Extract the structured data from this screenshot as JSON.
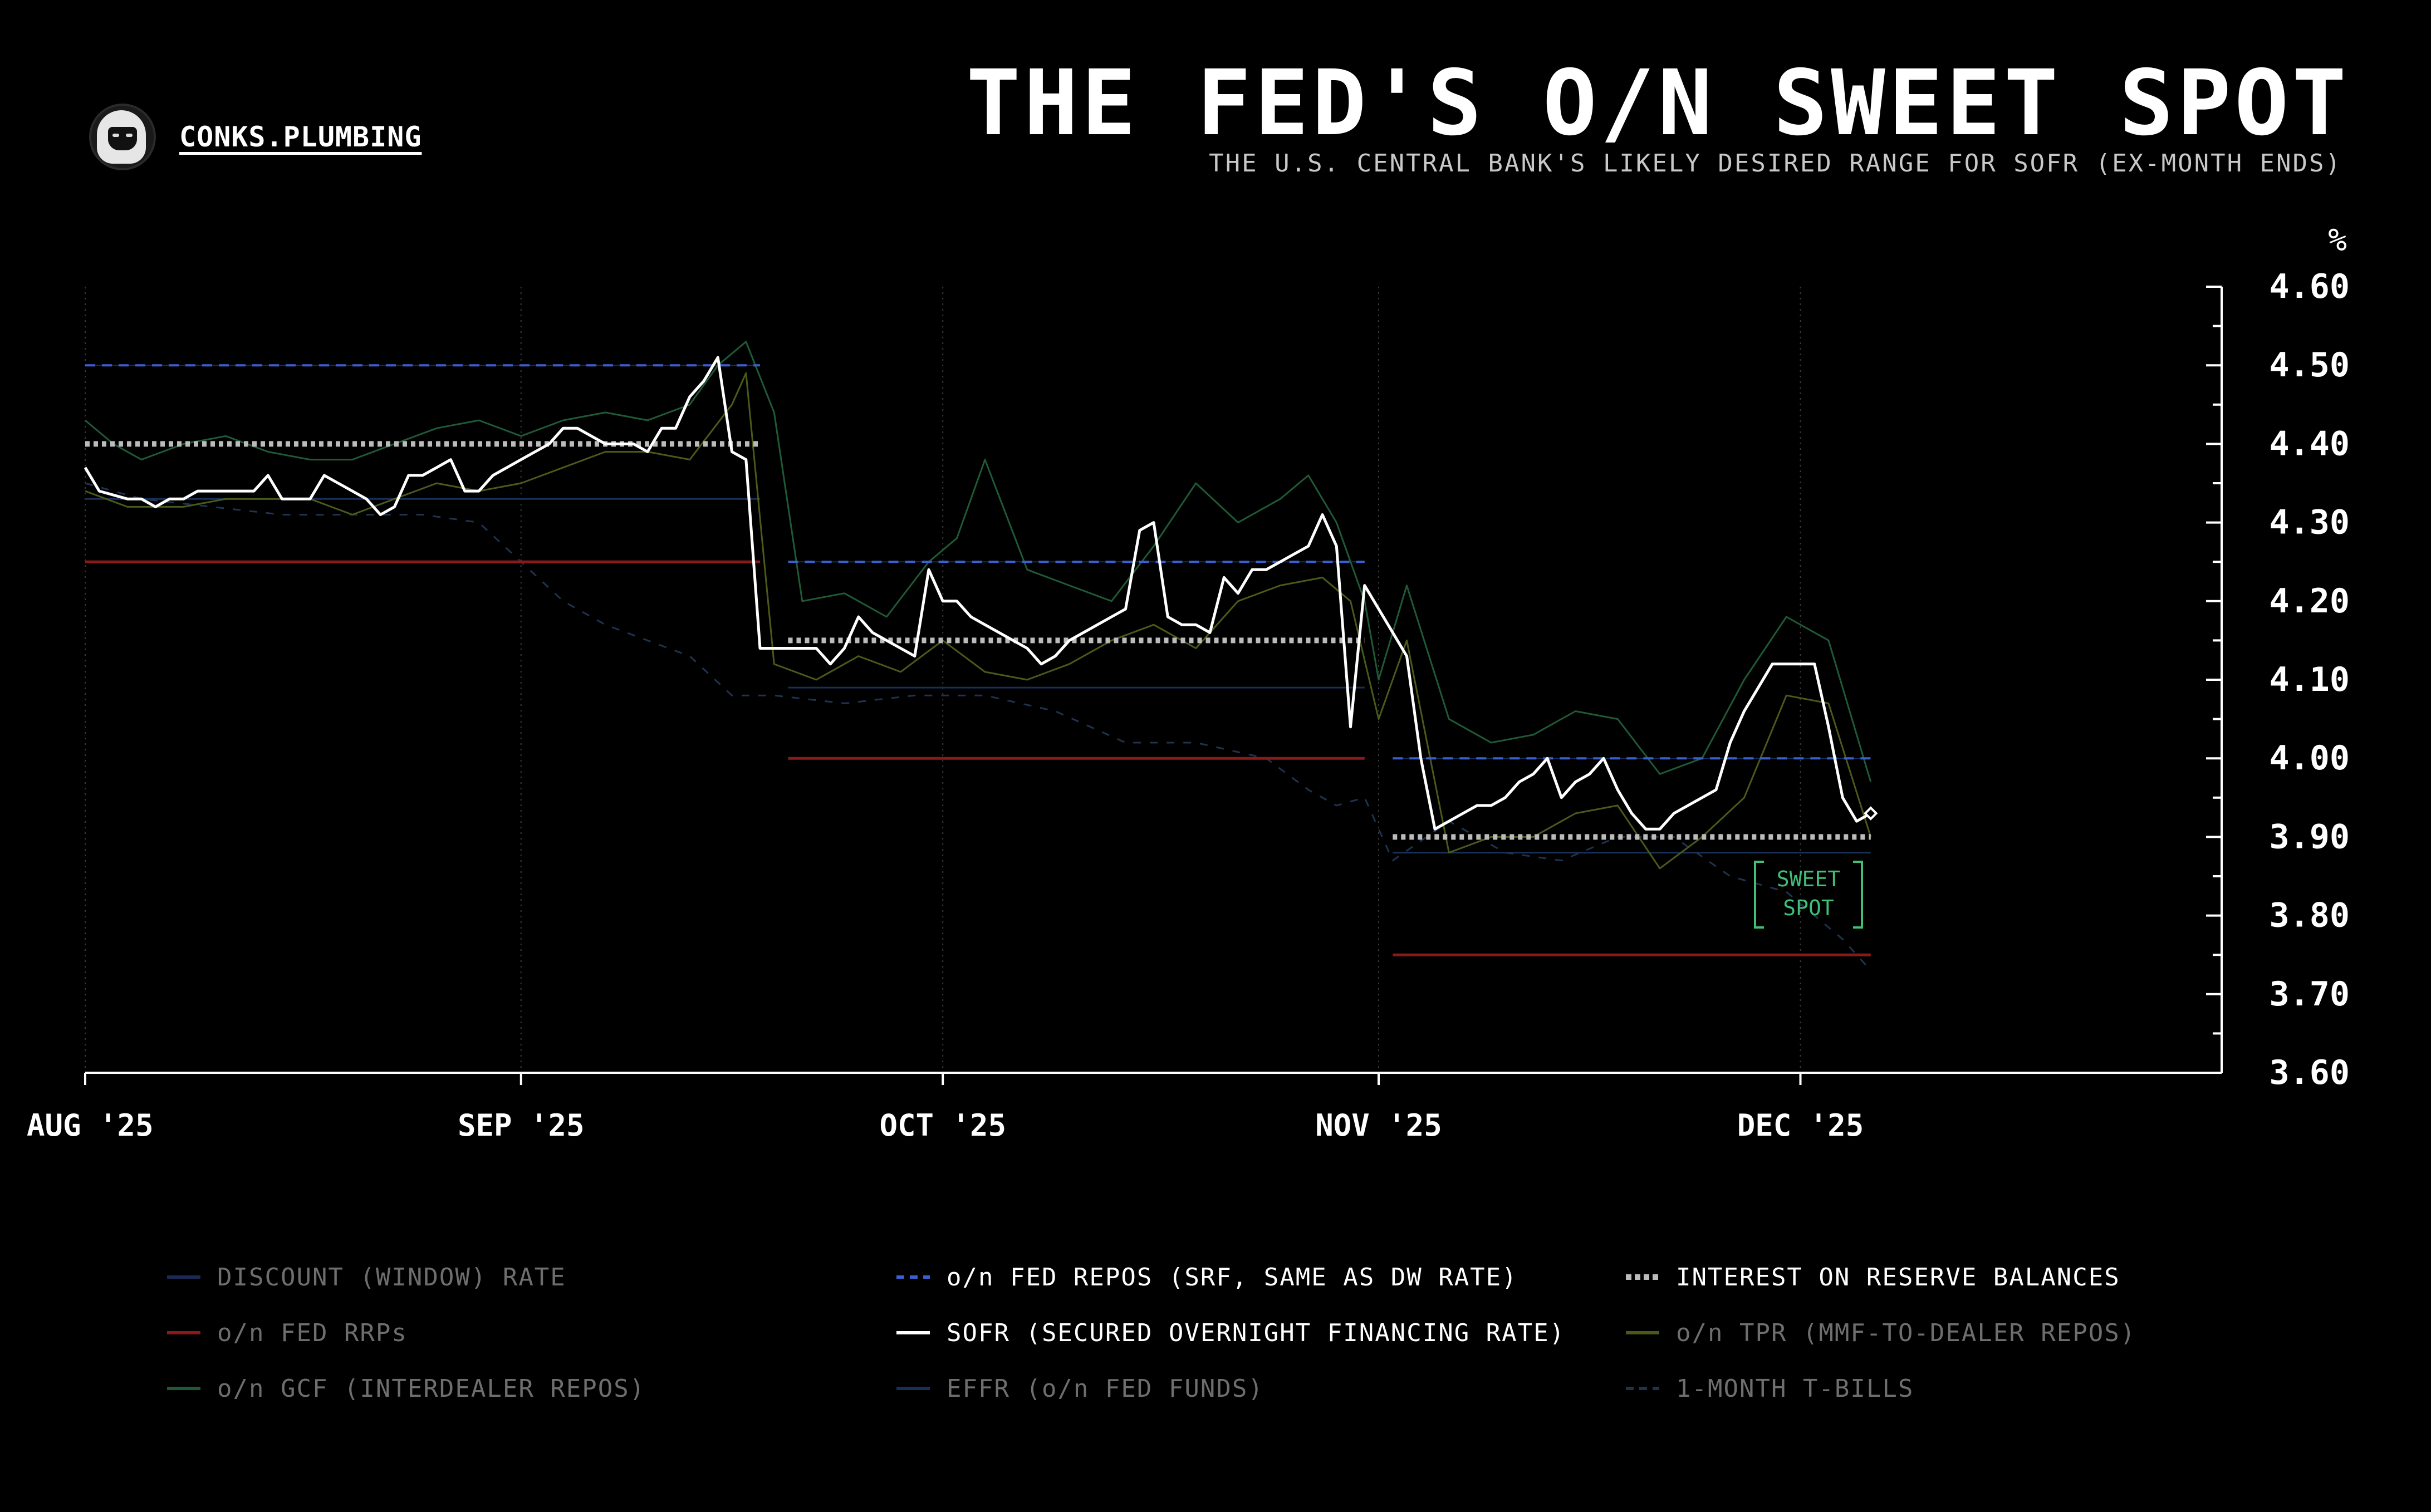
{
  "brand": {
    "name": "CONKS.PLUMBING"
  },
  "header": {
    "title": "THE FED'S O/N SWEET SPOT",
    "subtitle": "THE U.S. CENTRAL BANK'S LIKELY DESIRED RANGE FOR SOFR (EX-MONTH ENDS)"
  },
  "colors": {
    "background": "#000000",
    "sofr": "#ffffff",
    "srf": "#3a5fd0",
    "iorb": "#bbbbbb",
    "rrp": "#8a1a1a",
    "discount": "#1b2a55",
    "gcf": "#1f5a36",
    "tpr": "#4a5a1a",
    "effr": "#183058",
    "tbills": "#1f3350",
    "annotation": "#3fbf78"
  },
  "annotation": {
    "line1": "SWEET",
    "line2": "SPOT"
  },
  "chart_data": {
    "type": "line",
    "title": "THE FED'S O/N SWEET SPOT",
    "xlabel": "",
    "ylabel": "%",
    "ylim": [
      3.6,
      4.6
    ],
    "yticks": [
      "4.60",
      "4.50",
      "4.40",
      "4.30",
      "4.20",
      "4.10",
      "4.00",
      "3.90",
      "3.80",
      "3.70",
      "3.60"
    ],
    "xticks": [
      {
        "label": "AUG '25",
        "day": 1
      },
      {
        "label": "SEP '25",
        "day": 32
      },
      {
        "label": "OCT '25",
        "day": 62
      },
      {
        "label": "NOV '25",
        "day": 93
      },
      {
        "label": "DEC '25",
        "day": 123
      }
    ],
    "x_unit": "day of year offset from Aug 1 2025",
    "x_range": [
      1,
      153
    ],
    "grid": "vertical dotted at month starts",
    "legend_position": "bottom",
    "series": [
      {
        "key": "discount",
        "name": "DISCOUNT (WINDOW) RATE",
        "style": "solid",
        "width": 2,
        "color_key": "discount",
        "segments": [
          {
            "x": [
              1,
              49
            ],
            "y": [
              4.5,
              4.5
            ]
          },
          {
            "x": [
              51,
              92
            ],
            "y": [
              4.25,
              4.25
            ]
          },
          {
            "x": [
              94,
              128
            ],
            "y": [
              4.0,
              4.0
            ]
          }
        ]
      },
      {
        "key": "srf",
        "name": "o/n FED REPOS (SRF, SAME AS DW RATE)",
        "style": "dashed",
        "width": 4,
        "color_key": "srf",
        "segments": [
          {
            "x": [
              1,
              49
            ],
            "y": [
              4.5,
              4.5
            ]
          },
          {
            "x": [
              51,
              92
            ],
            "y": [
              4.25,
              4.25
            ]
          },
          {
            "x": [
              94,
              128
            ],
            "y": [
              4.0,
              4.0
            ]
          }
        ]
      },
      {
        "key": "iorb",
        "name": "INTEREST ON RESERVE BALANCES",
        "style": "dotted",
        "width": 10,
        "color_key": "iorb",
        "segments": [
          {
            "x": [
              1,
              49
            ],
            "y": [
              4.4,
              4.4
            ]
          },
          {
            "x": [
              51,
              92
            ],
            "y": [
              4.15,
              4.15
            ]
          },
          {
            "x": [
              94,
              128
            ],
            "y": [
              3.9,
              3.9
            ]
          }
        ]
      },
      {
        "key": "rrp",
        "name": "o/n FED RRPs",
        "style": "solid",
        "width": 5,
        "color_key": "rrp",
        "segments": [
          {
            "x": [
              1,
              49
            ],
            "y": [
              4.25,
              4.25
            ]
          },
          {
            "x": [
              51,
              92
            ],
            "y": [
              4.0,
              4.0
            ]
          },
          {
            "x": [
              94,
              128
            ],
            "y": [
              3.75,
              3.75
            ]
          }
        ]
      },
      {
        "key": "gcf",
        "name": "o/n GCF (INTERDEALER REPOS)",
        "style": "solid",
        "width": 3,
        "color_key": "gcf",
        "x": [
          1,
          3,
          5,
          8,
          11,
          14,
          17,
          20,
          23,
          26,
          29,
          32,
          35,
          38,
          41,
          44,
          46,
          48,
          50,
          52,
          55,
          58,
          61,
          63,
          65,
          68,
          71,
          74,
          77,
          80,
          83,
          86,
          88,
          90,
          92,
          93,
          95,
          98,
          101,
          104,
          107,
          110,
          113,
          116,
          119,
          122,
          125,
          128
        ],
        "y": [
          4.43,
          4.4,
          4.38,
          4.4,
          4.41,
          4.39,
          4.38,
          4.38,
          4.4,
          4.42,
          4.43,
          4.41,
          4.43,
          4.44,
          4.43,
          4.45,
          4.5,
          4.53,
          4.44,
          4.2,
          4.21,
          4.18,
          4.25,
          4.28,
          4.38,
          4.24,
          4.22,
          4.2,
          4.27,
          4.35,
          4.3,
          4.33,
          4.36,
          4.3,
          4.2,
          4.1,
          4.22,
          4.05,
          4.02,
          4.03,
          4.06,
          4.05,
          3.98,
          4.0,
          4.1,
          4.18,
          4.15,
          3.97
        ]
      },
      {
        "key": "sofr",
        "name": "SOFR (SECURED OVERNIGHT FINANCING RATE)",
        "style": "solid",
        "width": 5,
        "color_key": "sofr",
        "x": [
          1,
          2,
          4,
          5,
          6,
          7,
          8,
          9,
          10,
          11,
          12,
          13,
          14,
          15,
          16,
          17,
          18,
          19,
          20,
          21,
          22,
          23,
          24,
          25,
          26,
          27,
          28,
          29,
          30,
          31,
          32,
          33,
          34,
          35,
          36,
          37,
          38,
          39,
          40,
          41,
          42,
          43,
          44,
          45,
          46,
          47,
          48,
          49,
          50,
          51,
          52,
          53,
          54,
          55,
          56,
          57,
          58,
          59,
          60,
          61,
          62,
          63,
          64,
          65,
          66,
          67,
          68,
          69,
          70,
          71,
          72,
          73,
          74,
          75,
          76,
          77,
          78,
          79,
          80,
          81,
          82,
          83,
          84,
          85,
          86,
          87,
          88,
          89,
          90,
          91,
          92,
          93,
          94,
          95,
          96,
          97,
          98,
          99,
          100,
          101,
          102,
          103,
          104,
          105,
          106,
          107,
          108,
          109,
          110,
          111,
          112,
          113,
          114,
          115,
          116,
          117,
          118,
          119,
          120,
          121,
          122,
          123,
          124,
          125,
          126,
          127,
          128
        ],
        "y": [
          4.37,
          4.34,
          4.33,
          4.33,
          4.32,
          4.33,
          4.33,
          4.34,
          4.34,
          4.34,
          4.34,
          4.34,
          4.36,
          4.33,
          4.33,
          4.33,
          4.36,
          4.35,
          4.34,
          4.33,
          4.31,
          4.32,
          4.36,
          4.36,
          4.37,
          4.38,
          4.34,
          4.34,
          4.36,
          4.37,
          4.38,
          4.39,
          4.4,
          4.42,
          4.42,
          4.41,
          4.4,
          4.4,
          4.4,
          4.39,
          4.42,
          4.42,
          4.46,
          4.48,
          4.51,
          4.39,
          4.38,
          4.14,
          4.14,
          4.14,
          4.14,
          4.14,
          4.12,
          4.14,
          4.18,
          4.16,
          4.15,
          4.14,
          4.13,
          4.24,
          4.2,
          4.2,
          4.18,
          4.17,
          4.16,
          4.15,
          4.14,
          4.12,
          4.13,
          4.15,
          4.16,
          4.17,
          4.18,
          4.19,
          4.29,
          4.3,
          4.18,
          4.17,
          4.17,
          4.16,
          4.23,
          4.21,
          4.24,
          4.24,
          4.25,
          4.26,
          4.27,
          4.31,
          4.27,
          4.04,
          4.22,
          4.19,
          4.16,
          4.13,
          4.0,
          3.91,
          3.92,
          3.93,
          3.94,
          3.94,
          3.95,
          3.97,
          3.98,
          4.0,
          3.95,
          3.97,
          3.98,
          4.0,
          3.96,
          3.93,
          3.91,
          3.91,
          3.93,
          3.94,
          3.95,
          3.96,
          4.02,
          4.06,
          4.09,
          4.12,
          4.12,
          4.12,
          4.12,
          4.04,
          3.95,
          3.92,
          3.93
        ]
      },
      {
        "key": "tpr",
        "name": "o/n TPR (MMF-TO-DEALER REPOS)",
        "style": "solid",
        "width": 3,
        "color_key": "tpr",
        "x": [
          1,
          4,
          8,
          11,
          14,
          17,
          20,
          23,
          26,
          29,
          32,
          35,
          38,
          41,
          44,
          47,
          48,
          50,
          53,
          56,
          59,
          62,
          65,
          68,
          71,
          74,
          77,
          80,
          83,
          86,
          89,
          91,
          93,
          95,
          98,
          101,
          104,
          107,
          110,
          113,
          116,
          119,
          122,
          125,
          128
        ],
        "y": [
          4.34,
          4.32,
          4.32,
          4.33,
          4.33,
          4.33,
          4.31,
          4.33,
          4.35,
          4.34,
          4.35,
          4.37,
          4.39,
          4.39,
          4.38,
          4.45,
          4.49,
          4.12,
          4.1,
          4.13,
          4.11,
          4.15,
          4.11,
          4.1,
          4.12,
          4.15,
          4.17,
          4.14,
          4.2,
          4.22,
          4.23,
          4.2,
          4.05,
          4.15,
          3.88,
          3.9,
          3.9,
          3.93,
          3.94,
          3.86,
          3.9,
          3.95,
          4.08,
          4.07,
          3.9
        ]
      },
      {
        "key": "effr",
        "name": "EFFR (o/n FED FUNDS)",
        "style": "solid",
        "width": 3,
        "color_key": "effr",
        "segments": [
          {
            "x": [
              1,
              49
            ],
            "y": [
              4.33,
              4.33
            ]
          },
          {
            "x": [
              51,
              92
            ],
            "y": [
              4.09,
              4.09
            ]
          },
          {
            "x": [
              94,
              128
            ],
            "y": [
              3.88,
              3.88
            ]
          }
        ]
      },
      {
        "key": "tbills",
        "name": "1-MONTH T-BILLS",
        "style": "dashed",
        "width": 3,
        "color_key": "tbills",
        "x": [
          1,
          5,
          10,
          15,
          20,
          25,
          29,
          32,
          35,
          38,
          41,
          44,
          47,
          49,
          50,
          55,
          60,
          65,
          70,
          75,
          80,
          85,
          88,
          90,
          92,
          94,
          98,
          102,
          106,
          110,
          114,
          118,
          122,
          126,
          128
        ],
        "y": [
          4.35,
          4.33,
          4.32,
          4.31,
          4.31,
          4.31,
          4.3,
          4.25,
          4.2,
          4.17,
          4.15,
          4.13,
          4.08,
          4.08,
          4.08,
          4.07,
          4.08,
          4.08,
          4.06,
          4.02,
          4.02,
          4.0,
          3.96,
          3.94,
          3.95,
          3.87,
          3.92,
          3.88,
          3.87,
          3.9,
          3.9,
          3.85,
          3.83,
          3.77,
          3.73
        ]
      }
    ]
  },
  "legend": {
    "items": [
      {
        "label": "DISCOUNT (WINDOW) RATE",
        "series": "discount",
        "dim": true
      },
      {
        "label": "o/n FED REPOS (SRF, SAME AS DW RATE)",
        "series": "srf",
        "dim": false
      },
      {
        "label": "INTEREST ON RESERVE BALANCES",
        "series": "iorb",
        "dim": false
      },
      {
        "label": "o/n FED RRPs",
        "series": "rrp",
        "dim": true
      },
      {
        "label": "SOFR (SECURED OVERNIGHT FINANCING RATE)",
        "series": "sofr",
        "dim": false
      },
      {
        "label": "o/n TPR (MMF-TO-DEALER REPOS)",
        "series": "tpr",
        "dim": true
      },
      {
        "label": "o/n GCF (INTERDEALER REPOS)",
        "series": "gcf",
        "dim": true
      },
      {
        "label": "EFFR (o/n FED FUNDS)",
        "series": "effr",
        "dim": true
      },
      {
        "label": "1-MONTH T-BILLS",
        "series": "tbills",
        "dim": true
      }
    ]
  }
}
